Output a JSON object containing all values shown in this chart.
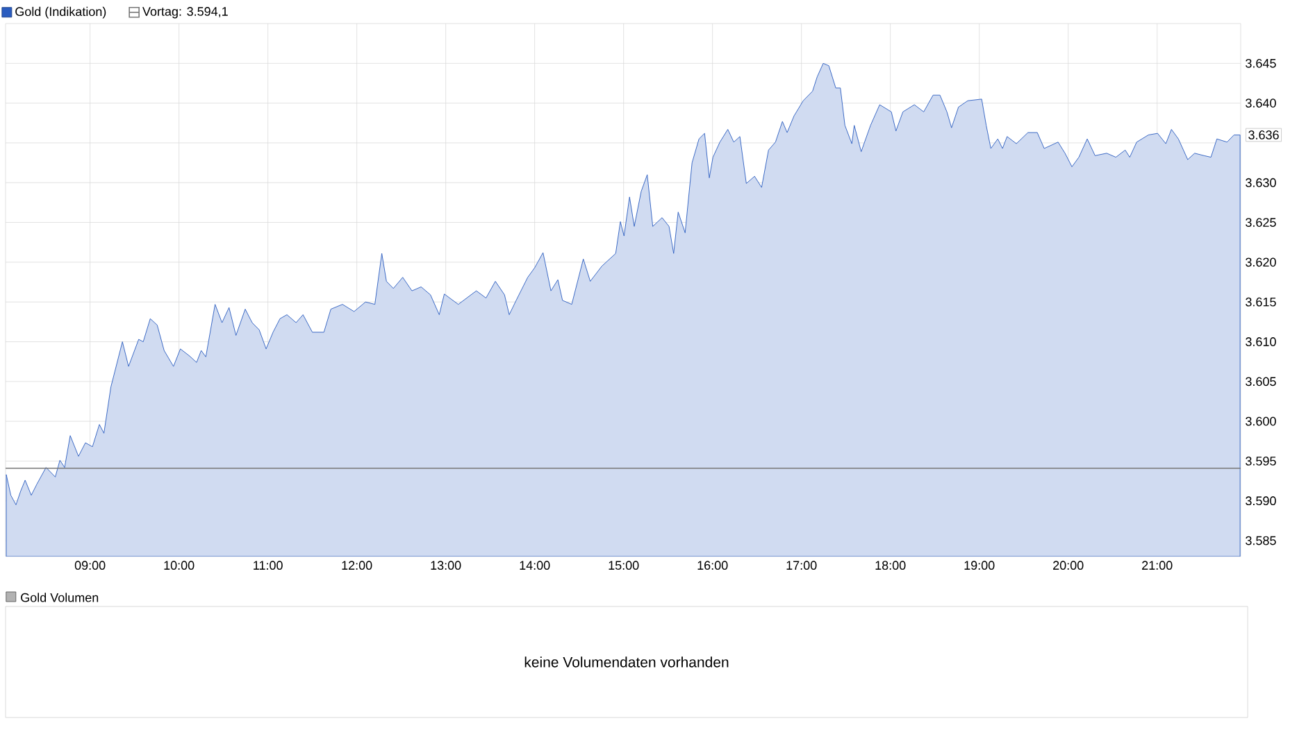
{
  "chart_data": [
    {
      "type": "area",
      "xlim": [
        8.05,
        21.94
      ],
      "ylim": [
        3583,
        3650
      ],
      "xticks": [
        {
          "value": 9,
          "label": "09:00"
        },
        {
          "value": 10,
          "label": "10:00"
        },
        {
          "value": 11,
          "label": "11:00"
        },
        {
          "value": 12,
          "label": "12:00"
        },
        {
          "value": 13,
          "label": "13:00"
        },
        {
          "value": 14,
          "label": "14:00"
        },
        {
          "value": 15,
          "label": "15:00"
        },
        {
          "value": 16,
          "label": "16:00"
        },
        {
          "value": 17,
          "label": "17:00"
        },
        {
          "value": 18,
          "label": "18:00"
        },
        {
          "value": 19,
          "label": "19:00"
        },
        {
          "value": 20,
          "label": "20:00"
        },
        {
          "value": 21,
          "label": "21:00"
        }
      ],
      "yticks": [
        {
          "value": 3585,
          "label": "3.585"
        },
        {
          "value": 3590,
          "label": "3.590"
        },
        {
          "value": 3595,
          "label": "3.595"
        },
        {
          "value": 3600,
          "label": "3.600"
        },
        {
          "value": 3605,
          "label": "3.605"
        },
        {
          "value": 3610,
          "label": "3.610"
        },
        {
          "value": 3615,
          "label": "3.615"
        },
        {
          "value": 3620,
          "label": "3.620"
        },
        {
          "value": 3625,
          "label": "3.625"
        },
        {
          "value": 3630,
          "label": "3.630"
        },
        {
          "value": 3635,
          "label": null
        },
        {
          "value": 3640,
          "label": "3.640"
        },
        {
          "value": 3645,
          "label": "3.645"
        }
      ],
      "grid": true,
      "legend": "top left",
      "series": [
        {
          "name": "Gold (Indikation)",
          "color": "#2a5cbf",
          "x": [
            8.058,
            8.109,
            8.167,
            8.219,
            8.27,
            8.339,
            8.402,
            8.505,
            8.609,
            8.661,
            8.714,
            8.777,
            8.87,
            8.948,
            9.027,
            9.105,
            9.156,
            9.234,
            9.364,
            9.433,
            9.547,
            9.598,
            9.677,
            9.755,
            9.833,
            9.938,
            10.016,
            10.12,
            10.198,
            10.25,
            10.302,
            10.406,
            10.484,
            10.563,
            10.641,
            10.745,
            10.823,
            10.902,
            10.98,
            11.058,
            11.136,
            11.214,
            11.317,
            11.395,
            11.5,
            11.63,
            11.708,
            11.839,
            11.969,
            12.098,
            12.203,
            12.281,
            12.333,
            12.411,
            12.516,
            12.62,
            12.723,
            12.828,
            12.927,
            12.984,
            13.141,
            13.344,
            13.453,
            13.558,
            13.661,
            13.714,
            13.792,
            13.922,
            14.0,
            14.094,
            14.183,
            14.261,
            14.313,
            14.417,
            14.547,
            14.625,
            14.755,
            14.911,
            14.964,
            15.005,
            15.067,
            15.12,
            15.198,
            15.266,
            15.328,
            15.433,
            15.511,
            15.563,
            15.614,
            15.692,
            15.77,
            15.848,
            15.911,
            15.964,
            16.005,
            16.083,
            16.172,
            16.239,
            16.308,
            16.38,
            16.473,
            16.552,
            16.63,
            16.708,
            16.786,
            16.839,
            16.917,
            17.02,
            17.125,
            17.177,
            17.245,
            17.308,
            17.386,
            17.438,
            17.489,
            17.567,
            17.594,
            17.672,
            17.777,
            17.88,
            18.011,
            18.063,
            18.141,
            18.27,
            18.375,
            18.48,
            18.558,
            18.636,
            18.688,
            18.766,
            18.87,
            19.027,
            19.078,
            19.13,
            19.208,
            19.261,
            19.313,
            19.417,
            19.547,
            19.652,
            19.73,
            19.886,
            19.964,
            20.042,
            20.12,
            20.214,
            20.302,
            20.433,
            20.536,
            20.641,
            20.692,
            20.77,
            20.902,
            21.005,
            21.098,
            21.161,
            21.239,
            21.344,
            21.422,
            21.527,
            21.605,
            21.672,
            21.786,
            21.864,
            21.933
          ],
          "values": [
            3593.3,
            3590.7,
            3589.5,
            3591.2,
            3592.6,
            3590.7,
            3592.1,
            3594.2,
            3593.0,
            3595.1,
            3594.2,
            3598.2,
            3595.6,
            3597.3,
            3596.8,
            3599.6,
            3598.5,
            3604.3,
            3610.0,
            3606.9,
            3610.3,
            3610.0,
            3612.9,
            3612.1,
            3608.9,
            3606.9,
            3609.1,
            3608.2,
            3607.4,
            3608.9,
            3608.1,
            3614.7,
            3612.4,
            3614.3,
            3610.8,
            3614.1,
            3612.4,
            3611.5,
            3609.1,
            3611.2,
            3612.9,
            3613.4,
            3612.4,
            3613.4,
            3611.2,
            3611.2,
            3614.1,
            3614.7,
            3613.8,
            3615.0,
            3614.7,
            3621.1,
            3617.6,
            3616.7,
            3618.1,
            3616.4,
            3616.9,
            3615.9,
            3613.4,
            3616.0,
            3614.7,
            3616.4,
            3615.5,
            3617.6,
            3615.9,
            3613.4,
            3615.2,
            3618.1,
            3619.3,
            3621.2,
            3616.4,
            3617.8,
            3615.2,
            3614.7,
            3620.4,
            3617.6,
            3619.5,
            3621.1,
            3625.1,
            3623.3,
            3628.2,
            3624.5,
            3628.9,
            3631.0,
            3624.5,
            3625.6,
            3624.5,
            3621.1,
            3626.3,
            3623.7,
            3632.5,
            3635.5,
            3636.2,
            3630.6,
            3633.2,
            3635.1,
            3636.7,
            3635.1,
            3635.8,
            3629.9,
            3630.8,
            3629.4,
            3634.1,
            3635.1,
            3637.7,
            3636.3,
            3638.4,
            3640.3,
            3641.5,
            3643.3,
            3645.0,
            3644.7,
            3641.9,
            3641.9,
            3637.2,
            3634.9,
            3637.2,
            3633.9,
            3637.2,
            3639.8,
            3638.9,
            3636.5,
            3638.9,
            3639.8,
            3638.9,
            3641.0,
            3641.0,
            3638.9,
            3636.9,
            3639.5,
            3640.3,
            3640.5,
            3637.2,
            3634.3,
            3635.5,
            3634.3,
            3635.8,
            3634.9,
            3636.3,
            3636.3,
            3634.3,
            3635.1,
            3633.7,
            3632.0,
            3633.2,
            3635.5,
            3633.4,
            3633.7,
            3633.2,
            3634.1,
            3633.2,
            3635.1,
            3636.0,
            3636.2,
            3634.9,
            3636.7,
            3635.5,
            3632.9,
            3633.7,
            3633.4,
            3633.2,
            3635.5,
            3635.1,
            3636.0,
            3636.0
          ]
        }
      ],
      "ref_lines": [
        {
          "axis": "y",
          "value": 3594.1,
          "label": "Vortag: 3.594,1",
          "color": "#777777"
        }
      ],
      "annotations": [
        {
          "text": "3.636",
          "x": 21.933,
          "y": 3636
        }
      ]
    },
    {
      "type": "other",
      "title": "Gold Volumen",
      "annotations": [
        "keine Volumendaten vorhanden"
      ]
    }
  ]
}
